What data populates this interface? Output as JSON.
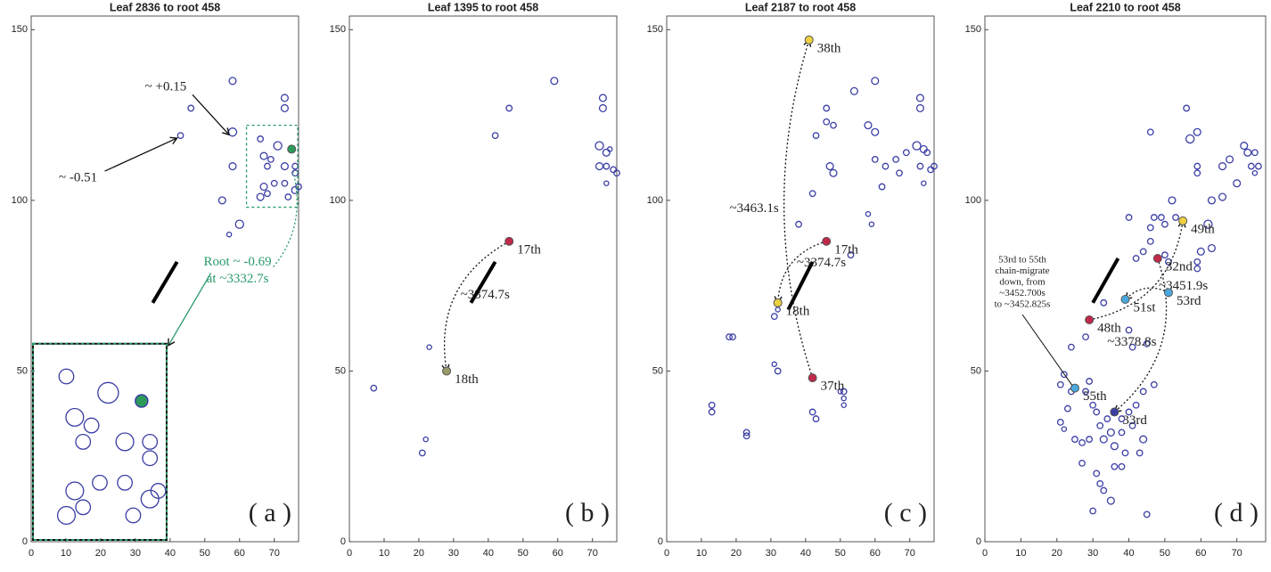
{
  "chart_data": [
    {
      "type": "scatter",
      "title": "Leaf 2836 to root 458",
      "panel_label": "( a )",
      "xlim": [
        0,
        77
      ],
      "ylim": [
        0,
        154
      ],
      "xticks": [
        0,
        10,
        20,
        30,
        40,
        50,
        60,
        70
      ],
      "yticks": [
        0,
        50,
        100,
        150
      ],
      "point_color": "#3a3ea5",
      "points": {
        "x": [
          46,
          43,
          58,
          58,
          58,
          55,
          60,
          57,
          73,
          73,
          66,
          71,
          67,
          69,
          73,
          76,
          76,
          67,
          70,
          73,
          66,
          68,
          74,
          76,
          77,
          68
        ],
        "y": [
          127,
          119,
          135,
          120,
          110,
          100,
          93,
          90,
          130,
          127,
          118,
          116,
          113,
          112,
          110,
          110,
          108,
          104,
          105,
          105,
          101,
          102,
          101,
          103,
          104,
          110
        ],
        "sizes": [
          2.5,
          2.5,
          3,
          3.5,
          3,
          3,
          3.5,
          2,
          3,
          3,
          2.5,
          3.5,
          3,
          2.5,
          3,
          2.5,
          2.5,
          3,
          2.5,
          2.5,
          3,
          2.5,
          2.5,
          3,
          2.5,
          2.5
        ]
      },
      "segment": {
        "x": [
          35,
          42
        ],
        "y": [
          70,
          82
        ]
      },
      "highlights": [
        {
          "x": 75,
          "y": 115,
          "color": "#2e9a5a"
        }
      ],
      "annotations": [
        {
          "text": "~ +0.15",
          "x": 58,
          "y": 120
        },
        {
          "text": "~ -0.51",
          "x": 43,
          "y": 119
        }
      ],
      "zoom_box": {
        "xlim": [
          62,
          78
        ],
        "ylim": [
          98,
          122
        ],
        "color": "#2a9a6a",
        "label_lines": [
          "Root ~ -0.69",
          "at ~3332.7s"
        ]
      },
      "inset": {
        "xlim": [
          0,
          39
        ],
        "ylim": [
          0,
          58
        ]
      }
    },
    {
      "type": "scatter",
      "title": "Leaf 1395 to root 458",
      "panel_label": "( b )",
      "xlim": [
        0,
        77
      ],
      "ylim": [
        0,
        154
      ],
      "xticks": [
        0,
        10,
        20,
        30,
        40,
        50,
        60,
        70
      ],
      "yticks": [
        0,
        50,
        100,
        150
      ],
      "point_color": "#3a3ea5",
      "points": {
        "x": [
          7,
          21,
          22,
          23,
          42,
          46,
          59,
          73,
          73,
          72,
          74,
          75,
          72,
          74,
          76,
          74,
          77
        ],
        "y": [
          45,
          26,
          30,
          57,
          119,
          127,
          135,
          130,
          127,
          116,
          114,
          115,
          110,
          110,
          109,
          105,
          108
        ],
        "sizes": [
          2.5,
          2.5,
          2,
          2,
          2.5,
          2.5,
          3,
          3,
          3,
          3.5,
          3,
          2,
          3,
          2.5,
          2.5,
          2,
          2.5
        ]
      },
      "segment": {
        "x": [
          35,
          42
        ],
        "y": [
          70,
          82
        ]
      },
      "highlights": [
        {
          "name": "17th",
          "x": 46,
          "y": 88,
          "color": "#c0284a"
        },
        {
          "name": "18th",
          "x": 28,
          "y": 50,
          "color": "#9a9a6a"
        }
      ],
      "migrations": [
        {
          "label": "~3374.7s",
          "from": [
            46,
            88
          ],
          "to": [
            28,
            50
          ]
        }
      ]
    },
    {
      "type": "scatter",
      "title": "Leaf 2187 to root 458",
      "panel_label": "( c )",
      "xlim": [
        0,
        77
      ],
      "ylim": [
        0,
        154
      ],
      "xticks": [
        0,
        10,
        20,
        30,
        40,
        50,
        60,
        70
      ],
      "yticks": [
        0,
        50,
        100,
        150
      ],
      "point_color": "#3a3ea5",
      "points": {
        "x": [
          13,
          13,
          18,
          19,
          23,
          23,
          31,
          32,
          31,
          32,
          42,
          43,
          51,
          51,
          51,
          50,
          38,
          42,
          43,
          46,
          46,
          47,
          48,
          48,
          54,
          58,
          60,
          60,
          60,
          58,
          59,
          62,
          63,
          66,
          67,
          69,
          72,
          73,
          73,
          74,
          75,
          77,
          73,
          74,
          76,
          53
        ],
        "y": [
          38,
          40,
          60,
          60,
          32,
          31,
          52,
          50,
          66,
          68,
          38,
          36,
          44,
          42,
          40,
          44,
          93,
          102,
          119,
          127,
          123,
          110,
          108,
          122,
          132,
          122,
          135,
          120,
          112,
          96,
          93,
          104,
          110,
          112,
          108,
          114,
          116,
          130,
          127,
          115,
          114,
          110,
          110,
          105,
          109,
          84
        ],
        "sizes": [
          2.5,
          2.5,
          2.5,
          2.5,
          2.5,
          2.5,
          2,
          2.5,
          2.5,
          2,
          2.5,
          2.5,
          2.5,
          2,
          2,
          2,
          2.5,
          2.5,
          2.5,
          2.5,
          2.5,
          3,
          3,
          2.5,
          3,
          3,
          3,
          3,
          2.5,
          2,
          2,
          2.5,
          2.5,
          2.5,
          2.5,
          2.5,
          3.5,
          3,
          3,
          3,
          2.5,
          2.5,
          2.5,
          2,
          2.5,
          2.5
        ]
      },
      "segment": {
        "x": [
          35,
          42
        ],
        "y": [
          68,
          82
        ]
      },
      "highlights": [
        {
          "name": "38th",
          "x": 41,
          "y": 147,
          "color": "#f0d040"
        },
        {
          "name": "17th",
          "x": 46,
          "y": 88,
          "color": "#c0284a"
        },
        {
          "name": "18th",
          "x": 32,
          "y": 70,
          "color": "#e8d040"
        },
        {
          "name": "37th",
          "x": 42,
          "y": 48,
          "color": "#c0284a"
        }
      ],
      "migrations": [
        {
          "label": "~3374.7s",
          "from": [
            46,
            88
          ],
          "to": [
            32,
            70
          ]
        },
        {
          "label": "~3463.1s",
          "from": [
            42,
            48
          ],
          "to": [
            41,
            147
          ]
        }
      ]
    },
    {
      "type": "scatter",
      "title": "Leaf 2210 to root 458",
      "panel_label": "( d )",
      "xlim": [
        0,
        78
      ],
      "ylim": [
        0,
        154
      ],
      "xticks": [
        0,
        10,
        20,
        30,
        40,
        50,
        60,
        70
      ],
      "yticks": [
        0,
        50,
        100,
        150
      ],
      "point_color": "#3a3ea5",
      "points": {
        "x": [
          59,
          59,
          59,
          46,
          56,
          57,
          66,
          68,
          72,
          73,
          75,
          74,
          76,
          75,
          63,
          66,
          70,
          62,
          60,
          59,
          63,
          59,
          52,
          53,
          49,
          50,
          47,
          46,
          46,
          44,
          42,
          50,
          51,
          40,
          33,
          28,
          24,
          22,
          21,
          24,
          23,
          21,
          22,
          25,
          28,
          29,
          30,
          31,
          32,
          34,
          33,
          35,
          36,
          38,
          38,
          40,
          42,
          41,
          44,
          43,
          39,
          36,
          31,
          32,
          33,
          35,
          30,
          45,
          38,
          44,
          47,
          40,
          41,
          45,
          27,
          27,
          29
        ],
        "y": [
          120,
          110,
          108,
          120,
          127,
          118,
          110,
          112,
          116,
          114,
          114,
          110,
          110,
          108,
          100,
          101,
          105,
          93,
          85,
          82,
          86,
          80,
          100,
          95,
          95,
          93,
          95,
          92,
          88,
          85,
          83,
          84,
          82,
          95,
          70,
          60,
          57,
          49,
          46,
          44,
          39,
          35,
          33,
          30,
          44,
          47,
          40,
          38,
          34,
          36,
          30,
          32,
          28,
          32,
          36,
          38,
          40,
          34,
          30,
          26,
          26,
          22,
          20,
          17,
          15,
          12,
          9,
          8,
          22,
          44,
          46,
          62,
          57,
          58,
          29,
          23,
          30
        ],
        "sizes": [
          3,
          2.5,
          2.5,
          2.5,
          2.5,
          3.5,
          3,
          3,
          3,
          3,
          2.5,
          2.5,
          2.5,
          2,
          3,
          3,
          3,
          3.5,
          3,
          2.5,
          3,
          2.5,
          3,
          2.5,
          2.5,
          2.5,
          2.5,
          2.5,
          2.5,
          2.5,
          2.5,
          2.5,
          2.5,
          2.5,
          2.5,
          2.5,
          2.5,
          2.5,
          2.5,
          2.5,
          2.5,
          2.5,
          2,
          2.5,
          2.5,
          2.5,
          2.5,
          2.5,
          2.5,
          2.5,
          3,
          3,
          3,
          2.5,
          2.5,
          2.5,
          2.5,
          2.5,
          3,
          2.5,
          2.5,
          2.5,
          2.5,
          2.5,
          2.5,
          3,
          2.5,
          2.5,
          2.5,
          2.5,
          2.5,
          2.5,
          2.5,
          2.5,
          2.5,
          2.5,
          2.5
        ]
      },
      "segment": {
        "x": [
          30,
          37
        ],
        "y": [
          70,
          83
        ]
      },
      "highlights": [
        {
          "name": "49th",
          "x": 55,
          "y": 94,
          "color": "#f0d040"
        },
        {
          "name": "32nd",
          "x": 48,
          "y": 83,
          "color": "#c0284a"
        },
        {
          "name": "48th",
          "x": 29,
          "y": 65,
          "color": "#c0284a"
        },
        {
          "name": "51st",
          "x": 39,
          "y": 71,
          "color": "#4aa8e0"
        },
        {
          "name": "53rd",
          "x": 51,
          "y": 73,
          "color": "#4aa8e0"
        },
        {
          "name": "55th",
          "x": 25,
          "y": 45,
          "color": "#4aa8e0"
        },
        {
          "name": "33rd",
          "x": 36,
          "y": 38,
          "color": "#3a3ea5"
        }
      ],
      "migrations": [
        {
          "label": "~3451.9s",
          "from": [
            29,
            65
          ],
          "to": [
            55,
            94
          ]
        },
        {
          "label": "~3378.8s",
          "from": [
            48,
            83
          ],
          "to": [
            36,
            38
          ]
        },
        {
          "from": [
            51,
            73
          ],
          "to": [
            39,
            71
          ]
        }
      ],
      "note": {
        "lines": [
          "53rd to 55th",
          "chain-migrate",
          "down, from",
          "~3452.700s",
          "to ~3452.825s"
        ]
      }
    }
  ]
}
